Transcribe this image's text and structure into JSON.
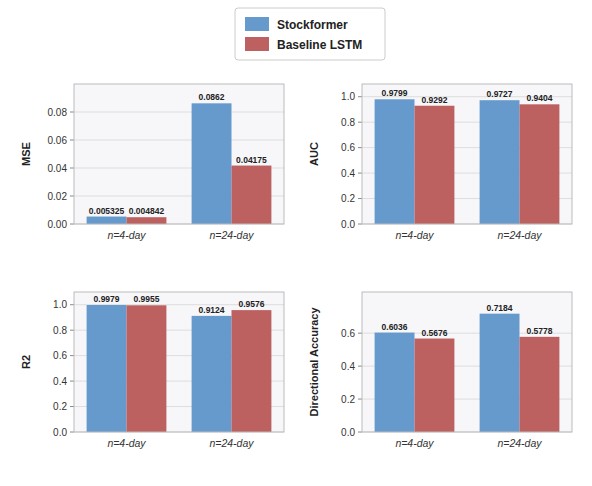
{
  "chart_data": [
    {
      "type": "bar",
      "y_label": "MSE",
      "categories": [
        "n=4-day",
        "n=24-day"
      ],
      "series": [
        {
          "name": "Stockformer",
          "color": "#6699CC",
          "values": [
            0.005325,
            0.0862
          ]
        },
        {
          "name": "Baseline LSTM",
          "color": "#BC6060",
          "values": [
            0.004842,
            0.04175
          ]
        }
      ],
      "ylim": [
        0,
        0.1
      ],
      "yticks": [
        {
          "value": 0.0,
          "label": "0.00"
        },
        0.02,
        0.04,
        0.06,
        0.08
      ],
      "grid": true,
      "data_labels": true,
      "legend": "top"
    },
    {
      "type": "bar",
      "y_label": "AUC",
      "categories": [
        "n=4-day",
        "n=24-day"
      ],
      "series": [
        {
          "name": "Stockformer",
          "color": "#6699CC",
          "values": [
            0.9799,
            0.9727
          ]
        },
        {
          "name": "Baseline LSTM",
          "color": "#BC6060",
          "values": [
            0.9292,
            0.9404
          ]
        }
      ],
      "ylim": [
        0.0,
        1.1
      ],
      "yticks": [
        {
          "value": 0.0,
          "label": "0.0"
        },
        0.2,
        0.4,
        0.6,
        0.8,
        {
          "value": 1.0,
          "label": "1.0"
        }
      ],
      "grid": true,
      "data_labels": true
    },
    {
      "type": "bar",
      "y_label": "R2",
      "categories": [
        "n=4-day",
        "n=24-day"
      ],
      "series": [
        {
          "name": "Stockformer",
          "color": "#6699CC",
          "values": [
            0.9979,
            0.9124
          ]
        },
        {
          "name": "Baseline LSTM",
          "color": "#BC6060",
          "values": [
            0.9955,
            0.9576
          ]
        }
      ],
      "ylim": [
        0.0,
        1.1
      ],
      "yticks": [
        {
          "value": 0.0,
          "label": "0.0"
        },
        0.2,
        0.4,
        0.6,
        0.8,
        {
          "value": 1.0,
          "label": "1.0"
        }
      ],
      "grid": true,
      "data_labels": true
    },
    {
      "type": "bar",
      "y_label": "Directional Accuracy",
      "categories": [
        "n=4-day",
        "n=24-day"
      ],
      "series": [
        {
          "name": "Stockformer",
          "color": "#6699CC",
          "values": [
            0.6036,
            0.7184
          ]
        },
        {
          "name": "Baseline LSTM",
          "color": "#BC6060",
          "values": [
            0.5676,
            0.5778
          ]
        }
      ],
      "ylim": [
        0.0,
        0.85
      ],
      "yticks": [
        {
          "value": 0.0,
          "label": "0.0"
        },
        0.2,
        0.4,
        0.6
      ],
      "grid": true,
      "data_labels": true
    }
  ]
}
